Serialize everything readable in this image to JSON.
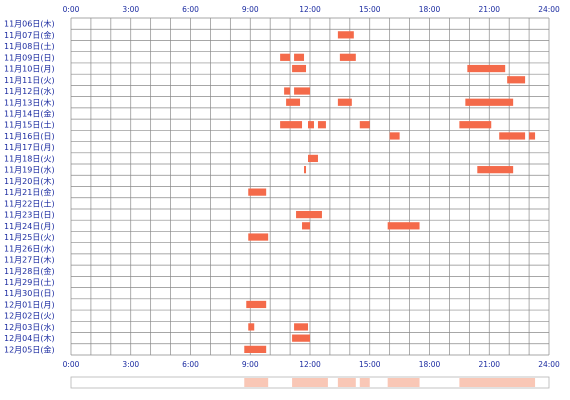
{
  "chart_data": {
    "type": "heatmap",
    "title": "",
    "xlabel": "",
    "ylabel": "",
    "x_ticks": [
      "0:00",
      "3:00",
      "6:00",
      "9:00",
      "12:00",
      "15:00",
      "18:00",
      "21:00",
      "24:00"
    ],
    "x_range_hours": [
      0,
      24
    ],
    "grid": true,
    "bar_color": "#f46a4a",
    "days": [
      "11月06日(木)",
      "11月07日(金)",
      "11月08日(土)",
      "11月09日(日)",
      "11月10日(月)",
      "11月11日(火)",
      "11月12日(水)",
      "11月13日(木)",
      "11月14日(金)",
      "11月15日(土)",
      "11月16日(日)",
      "11月17日(月)",
      "11月18日(火)",
      "11月19日(水)",
      "11月20日(木)",
      "11月21日(金)",
      "11月22日(土)",
      "11月23日(日)",
      "11月24日(月)",
      "11月25日(火)",
      "11月26日(水)",
      "11月27日(木)",
      "11月28日(金)",
      "11月29日(土)",
      "11月30日(日)",
      "12月01日(月)",
      "12月02日(火)",
      "12月03日(水)",
      "12月04日(木)",
      "12月05日(金)"
    ],
    "segments": [
      [],
      [
        [
          13.4,
          14.2
        ]
      ],
      [],
      [
        [
          10.5,
          11.0
        ],
        [
          11.2,
          11.7
        ],
        [
          13.5,
          14.3
        ]
      ],
      [
        [
          11.1,
          11.8
        ],
        [
          19.9,
          21.8
        ]
      ],
      [
        [
          21.9,
          22.8
        ]
      ],
      [
        [
          10.7,
          11.0
        ],
        [
          11.2,
          12.0
        ]
      ],
      [
        [
          10.8,
          11.5
        ],
        [
          13.4,
          14.1
        ],
        [
          19.8,
          22.2
        ]
      ],
      [],
      [
        [
          10.5,
          11.6
        ],
        [
          11.9,
          12.2
        ],
        [
          12.4,
          12.8
        ],
        [
          14.5,
          15.0
        ],
        [
          19.5,
          21.1
        ]
      ],
      [
        [
          16.0,
          16.5
        ],
        [
          21.5,
          22.8
        ],
        [
          23.0,
          23.3
        ]
      ],
      [],
      [
        [
          11.9,
          12.4
        ]
      ],
      [
        [
          11.7,
          11.8
        ],
        [
          20.4,
          22.2
        ]
      ],
      [],
      [
        [
          8.9,
          9.8
        ]
      ],
      [],
      [
        [
          11.3,
          12.6
        ]
      ],
      [
        [
          11.6,
          12.0
        ],
        [
          15.9,
          17.5
        ]
      ],
      [
        [
          8.9,
          9.9
        ]
      ],
      [],
      [],
      [],
      [],
      [],
      [
        [
          8.8,
          9.8
        ]
      ],
      [],
      [
        [
          8.9,
          9.2
        ],
        [
          11.2,
          11.9
        ]
      ],
      [
        [
          11.1,
          12.0
        ]
      ],
      [
        [
          8.7,
          9.8
        ]
      ]
    ],
    "density_strip": [
      [
        8.7,
        9.9
      ],
      [
        11.1,
        12.9
      ],
      [
        13.4,
        14.3
      ],
      [
        14.5,
        15.0
      ],
      [
        15.9,
        17.5
      ],
      [
        19.5,
        23.3
      ]
    ]
  }
}
